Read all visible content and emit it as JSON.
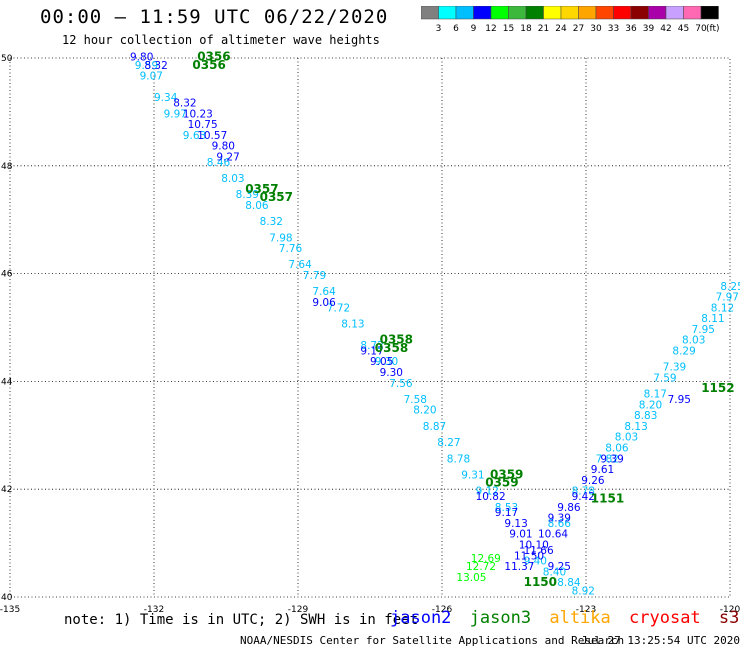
{
  "title": "00:00 – 11:59 UTC 06/22/2020",
  "subtitle": "12 hour collection of altimeter wave heights",
  "colorbar": {
    "labels": [
      "3",
      "6",
      "9",
      "12",
      "15",
      "18",
      "21",
      "24",
      "27",
      "30",
      "33",
      "36",
      "39",
      "42",
      "45",
      "70"
    ],
    "unit": "(ft)",
    "colors": [
      "#808080",
      "#00ffff",
      "#00bfff",
      "#0000ff",
      "#00ff00",
      "#3cb93c",
      "#008000",
      "#ffff00",
      "#ffd700",
      "#ffa500",
      "#ff4500",
      "#ff0000",
      "#8b0000",
      "#aa00aa",
      "#c8a0ff",
      "#ff69b4",
      "#000000"
    ]
  },
  "footer": {
    "note": "note:  1) Time is in UTC;  2) SWH is in feet",
    "satellites": [
      {
        "name": "jason2",
        "color": "#0000ff"
      },
      {
        "name": "jason3",
        "color": "#008000"
      },
      {
        "name": "altika",
        "color": "#ffa500"
      },
      {
        "name": "cryosat",
        "color": "#ff0000"
      },
      {
        "name": "s3a",
        "color": "#8b0000"
      }
    ],
    "credit": "NOAA/NESDIS Center for Satellite Applications and Research",
    "timestamp": "Jul 27 13:25:54 UTC 2020"
  },
  "chart_data": {
    "type": "scatter",
    "title": "00:00 – 11:59 UTC 06/22/2020",
    "xlim": [
      -135,
      -120
    ],
    "ylim": [
      40,
      50
    ],
    "x_ticks": [
      -135,
      -132,
      -129,
      -126,
      -123,
      -120
    ],
    "y_ticks": [
      40,
      42,
      44,
      46,
      48,
      50
    ],
    "x_tick_labels": [
      "-135",
      "-132",
      "-129",
      "-126",
      "-123",
      "-120"
    ],
    "y_tick_labels": [
      "50",
      "48",
      "46",
      "44",
      "42",
      "40"
    ],
    "grid": true,
    "colors": {
      "light": "#00bfff",
      "dark": "#0000ff",
      "time": "#008000",
      "green": "#3cb93c",
      "lightgreen": "#00ff00"
    },
    "series": [
      {
        "color": "light",
        "points": [
          {
            "x": -132.4,
            "y": 40.2,
            "v": "9.59"
          },
          {
            "x": -132.3,
            "y": 40.4,
            "v": "9.07"
          },
          {
            "x": -132.0,
            "y": 40.8,
            "v": "9.34"
          },
          {
            "x": -131.8,
            "y": 41.1,
            "v": "9.97"
          },
          {
            "x": -131.4,
            "y": 41.5,
            "v": "9.63"
          },
          {
            "x": -130.9,
            "y": 42.0,
            "v": "8.46"
          },
          {
            "x": -130.6,
            "y": 42.3,
            "v": "8.03"
          },
          {
            "x": -130.3,
            "y": 42.6,
            "v": "8.39"
          },
          {
            "x": -130.1,
            "y": 42.8,
            "v": "8.06"
          },
          {
            "x": -129.8,
            "y": 43.1,
            "v": "8.32"
          },
          {
            "x": -129.6,
            "y": 43.4,
            "v": "7.98"
          },
          {
            "x": -129.4,
            "y": 43.6,
            "v": "7.76"
          },
          {
            "x": -129.2,
            "y": 43.9,
            "v": "7.64"
          },
          {
            "x": -128.9,
            "y": 44.1,
            "v": "7.79"
          },
          {
            "x": -128.7,
            "y": 44.4,
            "v": "7.64"
          },
          {
            "x": -128.4,
            "y": 44.7,
            "v": "7.72"
          },
          {
            "x": -128.1,
            "y": 45.0,
            "v": "8.13"
          },
          {
            "x": -127.7,
            "y": 45.4,
            "v": "8.72"
          },
          {
            "x": -127.4,
            "y": 45.7,
            "v": "9.30"
          },
          {
            "x": -127.1,
            "y": 46.1,
            "v": "7.56"
          },
          {
            "x": -126.8,
            "y": 46.4,
            "v": "7.58"
          },
          {
            "x": -126.6,
            "y": 46.6,
            "v": "8.20"
          },
          {
            "x": -126.4,
            "y": 46.9,
            "v": "8.87"
          },
          {
            "x": -126.1,
            "y": 47.2,
            "v": "8.27"
          },
          {
            "x": -125.9,
            "y": 47.5,
            "v": "8.78"
          },
          {
            "x": -125.6,
            "y": 47.8,
            "v": "9.31"
          },
          {
            "x": -125.3,
            "y": 48.1,
            "v": "9.12"
          },
          {
            "x": -124.9,
            "y": 48.4,
            "v": "8.53"
          },
          {
            "x": -124.3,
            "y": 49.4,
            "v": "9.40"
          },
          {
            "x": -123.9,
            "y": 49.6,
            "v": "8.40"
          },
          {
            "x": -123.6,
            "y": 49.8,
            "v": "8.84"
          },
          {
            "x": -123.3,
            "y": 49.95,
            "v": "8.92"
          },
          {
            "x": -123.8,
            "y": 48.7,
            "v": "8.66"
          },
          {
            "x": -123.3,
            "y": 48.1,
            "v": "8.78"
          },
          {
            "x": -122.8,
            "y": 47.5,
            "v": "7.82"
          },
          {
            "x": -122.6,
            "y": 47.3,
            "v": "8.06"
          },
          {
            "x": -122.4,
            "y": 47.1,
            "v": "8.03"
          },
          {
            "x": -122.2,
            "y": 46.9,
            "v": "8.13"
          },
          {
            "x": -122.0,
            "y": 46.7,
            "v": "8.83"
          },
          {
            "x": -121.9,
            "y": 46.5,
            "v": "8.20"
          },
          {
            "x": -121.8,
            "y": 46.3,
            "v": "8.17"
          },
          {
            "x": -121.6,
            "y": 46.0,
            "v": "7.59"
          },
          {
            "x": -121.4,
            "y": 45.8,
            "v": "7.39"
          },
          {
            "x": -121.2,
            "y": 45.5,
            "v": "8.29"
          },
          {
            "x": -121.0,
            "y": 45.3,
            "v": "8.03"
          },
          {
            "x": -120.8,
            "y": 45.1,
            "v": "7.95"
          },
          {
            "x": -120.6,
            "y": 44.9,
            "v": "8.11"
          },
          {
            "x": -120.4,
            "y": 44.7,
            "v": "8.12"
          },
          {
            "x": -120.3,
            "y": 44.5,
            "v": "7.97"
          },
          {
            "x": -120.2,
            "y": 44.3,
            "v": "8.25"
          }
        ]
      },
      {
        "color": "dark",
        "points": [
          {
            "x": -132.5,
            "y": 40.05,
            "v": "9.80"
          },
          {
            "x": -132.2,
            "y": 40.2,
            "v": "8.32"
          },
          {
            "x": -131.6,
            "y": 40.9,
            "v": "8.32"
          },
          {
            "x": -131.4,
            "y": 41.1,
            "v": "10.23"
          },
          {
            "x": -131.3,
            "y": 41.3,
            "v": "10.75"
          },
          {
            "x": -131.1,
            "y": 41.5,
            "v": "10.57"
          },
          {
            "x": -130.8,
            "y": 41.7,
            "v": "9.80"
          },
          {
            "x": -130.7,
            "y": 41.9,
            "v": "9.27"
          },
          {
            "x": -128.7,
            "y": 44.6,
            "v": "9.06"
          },
          {
            "x": -127.7,
            "y": 45.5,
            "v": "9.17"
          },
          {
            "x": -127.5,
            "y": 45.7,
            "v": "9.05"
          },
          {
            "x": -127.3,
            "y": 45.9,
            "v": "9.30"
          },
          {
            "x": -125.3,
            "y": 48.2,
            "v": "10.82"
          },
          {
            "x": -124.9,
            "y": 48.5,
            "v": "9.17"
          },
          {
            "x": -124.7,
            "y": 48.7,
            "v": "9.13"
          },
          {
            "x": -124.6,
            "y": 48.9,
            "v": "9.01"
          },
          {
            "x": -124.4,
            "y": 49.1,
            "v": "10.10"
          },
          {
            "x": -124.3,
            "y": 49.2,
            "v": "11.66"
          },
          {
            "x": -124.5,
            "y": 49.3,
            "v": "11.50"
          },
          {
            "x": -124.7,
            "y": 49.5,
            "v": "11.37"
          },
          {
            "x": -124.0,
            "y": 48.9,
            "v": "10.64"
          },
          {
            "x": -123.8,
            "y": 48.6,
            "v": "9.39"
          },
          {
            "x": -123.6,
            "y": 48.4,
            "v": "9.86"
          },
          {
            "x": -123.3,
            "y": 48.2,
            "v": "9.42"
          },
          {
            "x": -123.1,
            "y": 47.9,
            "v": "9.26"
          },
          {
            "x": -122.9,
            "y": 47.7,
            "v": "9.61"
          },
          {
            "x": -122.7,
            "y": 47.5,
            "v": "9.39"
          },
          {
            "x": -121.3,
            "y": 46.4,
            "v": "7.95"
          },
          {
            "x": -123.8,
            "y": 49.5,
            "v": "9.25"
          }
        ]
      },
      {
        "color": "time",
        "points": [
          {
            "x": -131.1,
            "y": 40.05,
            "v": "0356"
          },
          {
            "x": -131.2,
            "y": 40.2,
            "v": "0356"
          },
          {
            "x": -130.1,
            "y": 42.5,
            "v": "0357"
          },
          {
            "x": -129.8,
            "y": 42.65,
            "v": "0357"
          },
          {
            "x": -127.3,
            "y": 45.3,
            "v": "0358"
          },
          {
            "x": -127.4,
            "y": 45.45,
            "v": "0358"
          },
          {
            "x": -125.0,
            "y": 47.8,
            "v": "0359"
          },
          {
            "x": -125.1,
            "y": 47.95,
            "v": "0359"
          },
          {
            "x": -124.3,
            "y": 49.8,
            "v": "1150"
          },
          {
            "x": -122.9,
            "y": 48.25,
            "v": "1151"
          },
          {
            "x": -120.6,
            "y": 46.2,
            "v": "1152"
          }
        ]
      },
      {
        "color": "lightgreen",
        "points": [
          {
            "x": -125.4,
            "y": 49.35,
            "v": "12.69"
          },
          {
            "x": -125.5,
            "y": 49.5,
            "v": "12.72"
          },
          {
            "x": -125.7,
            "y": 49.7,
            "v": "13.05"
          }
        ]
      }
    ]
  }
}
